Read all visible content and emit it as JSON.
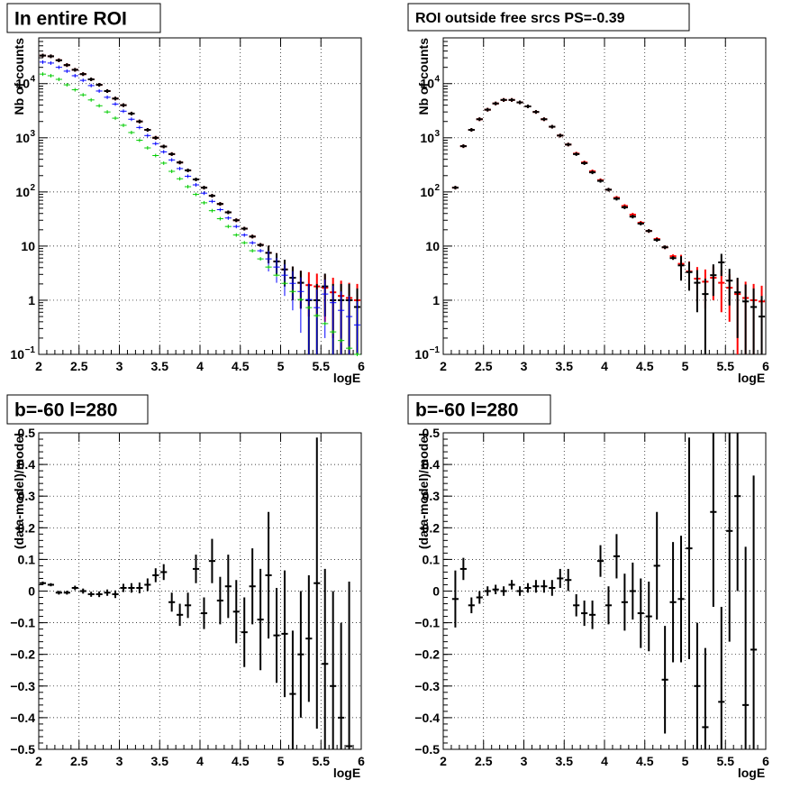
{
  "chart_data": [
    {
      "type": "scatter",
      "title": "In entire ROI",
      "xlabel": "logE",
      "ylabel": "Nb of counts",
      "xlim": [
        2,
        6
      ],
      "ylim": [
        0.1,
        70000
      ],
      "y_scale": "log",
      "grid": true,
      "x_ticks": [
        "2",
        "2.5",
        "3",
        "3.5",
        "4",
        "4.5",
        "5",
        "5.5",
        "6"
      ],
      "y_ticks": [
        {
          "value": 0.1,
          "label": "10",
          "sup": "−1"
        },
        {
          "value": 1,
          "label": "1",
          "sup": ""
        },
        {
          "value": 10,
          "label": "10",
          "sup": ""
        },
        {
          "value": 100,
          "label": "10",
          "sup": "2"
        },
        {
          "value": 1000,
          "label": "10",
          "sup": "3"
        },
        {
          "value": 10000,
          "label": "10",
          "sup": "4"
        }
      ],
      "x": [
        2.05,
        2.15,
        2.25,
        2.35,
        2.45,
        2.55,
        2.65,
        2.75,
        2.85,
        2.95,
        3.05,
        3.15,
        3.25,
        3.35,
        3.45,
        3.55,
        3.65,
        3.75,
        3.85,
        3.95,
        4.05,
        4.15,
        4.25,
        4.35,
        4.45,
        4.55,
        4.65,
        4.75,
        4.85,
        4.95,
        5.05,
        5.15,
        5.25,
        5.35,
        5.45,
        5.55,
        5.65,
        5.75,
        5.85,
        5.95
      ],
      "series": [
        {
          "color": "#ff0000",
          "style": "bold",
          "y": [
            33000,
            32000,
            27000,
            22000,
            18000,
            15000,
            12000,
            9500,
            7300,
            5300,
            4000,
            2800,
            2000,
            1400,
            1000,
            690,
            500,
            350,
            250,
            170,
            120,
            85,
            60,
            42,
            30,
            21,
            15,
            10.5,
            7.5,
            5.2,
            3.7,
            2.6,
            2.1,
            1.9,
            1.8,
            1.7,
            1.4,
            1.2,
            1.1,
            1.0
          ],
          "yerr": [
            0,
            0,
            0,
            0,
            0,
            0,
            0,
            0,
            0,
            0,
            0,
            0,
            0,
            0,
            0,
            0,
            0,
            0,
            0,
            0,
            0,
            0,
            0,
            0,
            0,
            0,
            0,
            0,
            2.7,
            2.2,
            1.9,
            1.6,
            1.4,
            1.4,
            1.3,
            1.3,
            1.2,
            1.1,
            1.0,
            1.0
          ]
        },
        {
          "color": "#000000",
          "style": "bold",
          "y": [
            33000,
            32000,
            27000,
            22000,
            18000,
            15000,
            12000,
            9500,
            7300,
            5300,
            4000,
            2800,
            2000,
            1400,
            1000,
            690,
            500,
            350,
            250,
            170,
            120,
            85,
            60,
            42,
            30,
            21,
            15,
            10.5,
            7.5,
            5.2,
            3.7,
            2.6,
            2.1,
            1.0,
            1.0,
            1.8,
            1.0,
            1.0,
            1.0,
            0.75
          ],
          "yerr": [
            0,
            0,
            0,
            0,
            0,
            0,
            0,
            0,
            0,
            0,
            0,
            0,
            0,
            0,
            0,
            0,
            0,
            0,
            0,
            0,
            0,
            0,
            0,
            0,
            0,
            0,
            0,
            0,
            2.7,
            2.2,
            1.9,
            1.6,
            1.4,
            1.0,
            1.0,
            1.3,
            1.0,
            1.0,
            1.0,
            0.9
          ]
        },
        {
          "color": "#0000ff",
          "style": "thin",
          "y": [
            25000,
            24000,
            20000,
            17000,
            14000,
            11500,
            9200,
            7300,
            5600,
            4200,
            3100,
            2200,
            1550,
            1100,
            780,
            550,
            390,
            270,
            195,
            135,
            95,
            67,
            47,
            33,
            23,
            16,
            11.5,
            8.2,
            5.8,
            4.1,
            2.9,
            2.05,
            1.45,
            1.03,
            0.73,
            1.3,
            0.9,
            0.65,
            0.5,
            0.35
          ],
          "yerr": [
            0,
            0,
            0,
            0,
            0,
            0,
            0,
            0,
            0,
            0,
            0,
            0,
            0,
            0,
            0,
            0,
            0,
            0,
            0,
            0,
            0,
            0,
            0,
            0,
            0,
            0,
            0,
            0,
            2.4,
            2.0,
            1.7,
            1.4,
            1.2,
            1.0,
            0.85,
            1.1,
            0.95,
            0.8,
            0.7,
            0.6
          ]
        },
        {
          "color": "#00cc00",
          "style": "thin",
          "y": [
            15000,
            14000,
            12000,
            9500,
            7700,
            6200,
            5000,
            3900,
            3000,
            2300,
            1700,
            1250,
            900,
            650,
            470,
            340,
            240,
            175,
            125,
            90,
            63,
            45,
            32,
            23,
            16,
            11.5,
            8.2,
            5.8,
            4.1,
            2.9,
            2.05,
            1.45,
            1.03,
            0.73,
            0.52,
            0.37,
            0.26,
            0.18,
            0.13,
            0.1
          ],
          "yerr": [
            0,
            0,
            0,
            0,
            0,
            0,
            0,
            0,
            0,
            0,
            0,
            0,
            0,
            0,
            0,
            0,
            0,
            0,
            0,
            0,
            0,
            0,
            0,
            0,
            0,
            0,
            0,
            0,
            0,
            0,
            0,
            0,
            0,
            0,
            0,
            0,
            0,
            0,
            0,
            0
          ]
        }
      ]
    },
    {
      "type": "scatter",
      "title": "ROI outside free srcs PS=-0.39",
      "xlabel": "logE",
      "ylabel": "Nb of counts",
      "xlim": [
        2,
        6
      ],
      "ylim": [
        0.1,
        70000
      ],
      "y_scale": "log",
      "grid": true,
      "x_ticks": [
        "2",
        "2.5",
        "3",
        "3.5",
        "4",
        "4.5",
        "5",
        "5.5",
        "6"
      ],
      "y_ticks": [
        {
          "value": 0.1,
          "label": "10",
          "sup": "−1"
        },
        {
          "value": 1,
          "label": "1",
          "sup": ""
        },
        {
          "value": 10,
          "label": "10",
          "sup": ""
        },
        {
          "value": 100,
          "label": "10",
          "sup": "2"
        },
        {
          "value": 1000,
          "label": "10",
          "sup": "3"
        },
        {
          "value": 10000,
          "label": "10",
          "sup": "4"
        }
      ],
      "x": [
        2.15,
        2.25,
        2.35,
        2.45,
        2.55,
        2.65,
        2.75,
        2.85,
        2.95,
        3.05,
        3.15,
        3.25,
        3.35,
        3.45,
        3.55,
        3.65,
        3.75,
        3.85,
        3.95,
        4.05,
        4.15,
        4.25,
        4.35,
        4.45,
        4.55,
        4.65,
        4.75,
        4.85,
        4.95,
        5.05,
        5.15,
        5.25,
        5.35,
        5.45,
        5.55,
        5.65,
        5.75,
        5.85,
        5.95
      ],
      "series": [
        {
          "color": "#ff0000",
          "style": "bold",
          "y": [
            120,
            700,
            1400,
            2200,
            3300,
            4300,
            5000,
            5000,
            4500,
            3800,
            3000,
            2200,
            1600,
            1100,
            750,
            510,
            350,
            240,
            165,
            110,
            78,
            55,
            38,
            27,
            19,
            13.5,
            9.5,
            6.5,
            4.7,
            3.4,
            2.5,
            2.2,
            2.6,
            2.1,
            1.7,
            1.3,
            1.1,
            1.0,
            0.95
          ],
          "yerr": [
            0,
            0,
            0,
            0,
            0,
            0,
            0,
            0,
            0,
            0,
            0,
            0,
            0,
            0,
            0,
            0,
            0,
            0,
            0,
            0,
            0,
            0,
            0,
            0,
            0,
            0,
            0,
            0,
            2.2,
            1.8,
            1.6,
            1.5,
            1.6,
            1.5,
            1.3,
            1.2,
            1.1,
            1.0,
            0.9
          ]
        },
        {
          "color": "#000000",
          "style": "bold",
          "y": [
            120,
            700,
            1400,
            2200,
            3300,
            4300,
            5000,
            5000,
            4500,
            3800,
            3000,
            2200,
            1600,
            1100,
            750,
            500,
            340,
            230,
            160,
            110,
            75,
            52,
            35,
            26,
            19,
            13,
            9.5,
            6.0,
            4.4,
            3.3,
            2.1,
            1.3,
            2.9,
            5.0,
            2.3,
            1.4,
            0.95,
            0.75,
            0.5
          ],
          "yerr": [
            0,
            0,
            0,
            0,
            0,
            0,
            0,
            0,
            0,
            0,
            0,
            0,
            0,
            0,
            0,
            0,
            0,
            0,
            0,
            0,
            0,
            0,
            0,
            0,
            0,
            0,
            0,
            0,
            2.1,
            1.8,
            1.5,
            1.2,
            1.7,
            2.2,
            1.5,
            1.2,
            1.0,
            0.9,
            0.7
          ]
        }
      ]
    },
    {
      "type": "scatter",
      "title": "b=-60 l=280",
      "xlabel": "logE",
      "ylabel": "(data-model)/model",
      "xlim": [
        2,
        6
      ],
      "ylim": [
        -0.5,
        0.5
      ],
      "grid": true,
      "x_ticks": [
        "2",
        "2.5",
        "3",
        "3.5",
        "4",
        "4.5",
        "5",
        "5.5",
        "6"
      ],
      "y_ticks": [
        {
          "value": -0.5,
          "label": "−0.5"
        },
        {
          "value": -0.4,
          "label": "−0.4"
        },
        {
          "value": -0.3,
          "label": "−0.3"
        },
        {
          "value": -0.2,
          "label": "−0.2"
        },
        {
          "value": -0.1,
          "label": "−0.1"
        },
        {
          "value": 0,
          "label": "0"
        },
        {
          "value": 0.1,
          "label": "0.1"
        },
        {
          "value": 0.2,
          "label": "0.2"
        },
        {
          "value": 0.3,
          "label": "0.3"
        },
        {
          "value": 0.4,
          "label": "0.4"
        },
        {
          "value": 0.5,
          "label": "0.5"
        }
      ],
      "x": [
        2.05,
        2.15,
        2.25,
        2.35,
        2.45,
        2.55,
        2.65,
        2.75,
        2.85,
        2.95,
        3.05,
        3.15,
        3.25,
        3.35,
        3.45,
        3.55,
        3.65,
        3.75,
        3.85,
        3.95,
        4.05,
        4.15,
        4.25,
        4.35,
        4.45,
        4.55,
        4.65,
        4.75,
        4.85,
        4.95,
        5.05,
        5.15,
        5.25,
        5.35,
        5.45,
        5.55,
        5.65,
        5.75,
        5.85
      ],
      "series": [
        {
          "color": "#000000",
          "style": "bold",
          "y": [
            0.025,
            0.02,
            -0.005,
            -0.005,
            0.01,
            0.0,
            -0.01,
            -0.01,
            -0.005,
            -0.01,
            0.01,
            0.01,
            0.01,
            0.02,
            0.05,
            0.06,
            -0.035,
            -0.075,
            -0.045,
            0.07,
            -0.07,
            0.095,
            -0.03,
            0.015,
            -0.065,
            -0.13,
            0.015,
            -0.09,
            0.05,
            -0.14,
            -0.135,
            -0.325,
            -0.2,
            -0.15,
            0.025,
            -0.23,
            -0.3,
            -0.4,
            -0.49
          ],
          "yerr": [
            0.005,
            0.005,
            0.006,
            0.006,
            0.007,
            0.008,
            0.008,
            0.009,
            0.01,
            0.012,
            0.013,
            0.015,
            0.017,
            0.02,
            0.022,
            0.025,
            0.03,
            0.035,
            0.04,
            0.045,
            0.05,
            0.07,
            0.075,
            0.1,
            0.1,
            0.11,
            0.12,
            0.16,
            0.2,
            0.15,
            0.2,
            0.2,
            0.2,
            0.2,
            0.46,
            0.3,
            0.3,
            0.3,
            0.52
          ]
        }
      ]
    },
    {
      "type": "scatter",
      "title": "b=-60 l=280",
      "xlabel": "logE",
      "ylabel": "(data-model)/model",
      "xlim": [
        2,
        6
      ],
      "ylim": [
        -0.5,
        0.5
      ],
      "grid": true,
      "x_ticks": [
        "2",
        "2.5",
        "3",
        "3.5",
        "4",
        "4.5",
        "5",
        "5.5",
        "6"
      ],
      "y_ticks": [
        {
          "value": -0.5,
          "label": "−0.5"
        },
        {
          "value": -0.4,
          "label": "−0.4"
        },
        {
          "value": -0.3,
          "label": "−0.3"
        },
        {
          "value": -0.2,
          "label": "−0.2"
        },
        {
          "value": -0.1,
          "label": "−0.1"
        },
        {
          "value": 0,
          "label": "0"
        },
        {
          "value": 0.1,
          "label": "0.1"
        },
        {
          "value": 0.2,
          "label": "0.2"
        },
        {
          "value": 0.3,
          "label": "0.3"
        },
        {
          "value": 0.4,
          "label": "0.4"
        },
        {
          "value": 0.5,
          "label": "0.5"
        }
      ],
      "x": [
        2.15,
        2.25,
        2.35,
        2.45,
        2.55,
        2.65,
        2.75,
        2.85,
        2.95,
        3.05,
        3.15,
        3.25,
        3.35,
        3.45,
        3.55,
        3.65,
        3.75,
        3.85,
        3.95,
        4.05,
        4.15,
        4.25,
        4.35,
        4.45,
        4.55,
        4.65,
        4.75,
        4.85,
        4.95,
        5.05,
        5.15,
        5.25,
        5.35,
        5.45,
        5.55,
        5.65,
        5.75,
        5.85
      ],
      "series": [
        {
          "color": "#000000",
          "style": "bold",
          "y": [
            -0.025,
            0.07,
            -0.045,
            -0.02,
            0.0,
            0.005,
            0.0,
            0.02,
            0.0,
            0.01,
            0.015,
            0.015,
            0.01,
            0.04,
            0.035,
            -0.045,
            -0.07,
            -0.075,
            0.095,
            -0.045,
            0.11,
            -0.035,
            0.0,
            -0.07,
            -0.08,
            0.08,
            -0.28,
            -0.035,
            -0.025,
            0.135,
            -0.3,
            -0.43,
            0.25,
            -0.35,
            0.19,
            0.3,
            -0.36,
            -0.185
          ],
          "yerr": [
            0.09,
            0.035,
            0.025,
            0.02,
            0.015,
            0.015,
            0.015,
            0.015,
            0.015,
            0.015,
            0.02,
            0.02,
            0.025,
            0.03,
            0.035,
            0.035,
            0.04,
            0.045,
            0.05,
            0.06,
            0.07,
            0.09,
            0.09,
            0.11,
            0.11,
            0.17,
            0.17,
            0.19,
            0.2,
            0.35,
            0.2,
            0.25,
            0.3,
            0.3,
            0.35,
            0.3,
            0.5,
            0.55
          ]
        }
      ]
    }
  ]
}
